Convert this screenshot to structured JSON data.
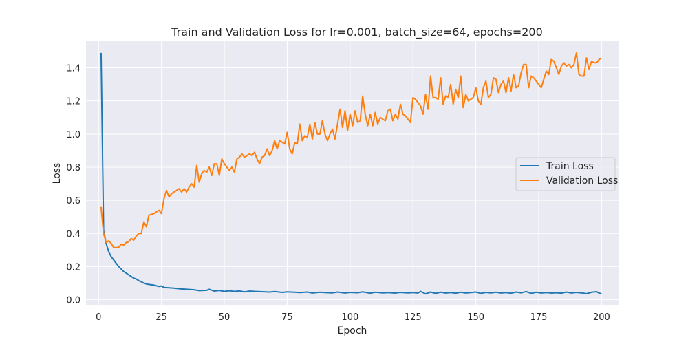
{
  "chart_data": {
    "type": "line",
    "title": "Train and Validation Loss for lr=0.001, batch_size=64, epochs=200",
    "xlabel": "Epoch",
    "ylabel": "Loss",
    "xlim": [
      -5,
      207
    ],
    "ylim": [
      -0.035,
      1.56
    ],
    "xticks": [
      0,
      25,
      50,
      75,
      100,
      125,
      150,
      175,
      200
    ],
    "yticks": [
      0.0,
      0.2,
      0.4,
      0.6,
      0.8,
      1.0,
      1.2,
      1.4
    ],
    "grid": true,
    "legend_position": "center-right",
    "series": [
      {
        "name": "Train Loss",
        "color": "#1f77b4",
        "points": [
          [
            1,
            1.49
          ],
          [
            2,
            0.42
          ],
          [
            3,
            0.34
          ],
          [
            4,
            0.29
          ],
          [
            5,
            0.26
          ],
          [
            6,
            0.24
          ],
          [
            7,
            0.22
          ],
          [
            8,
            0.2
          ],
          [
            9,
            0.185
          ],
          [
            10,
            0.17
          ],
          [
            11,
            0.16
          ],
          [
            12,
            0.15
          ],
          [
            13,
            0.14
          ],
          [
            14,
            0.13
          ],
          [
            15,
            0.125
          ],
          [
            16,
            0.115
          ],
          [
            17,
            0.108
          ],
          [
            18,
            0.1
          ],
          [
            19,
            0.095
          ],
          [
            20,
            0.092
          ],
          [
            22,
            0.088
          ],
          [
            24,
            0.08
          ],
          [
            25,
            0.083
          ],
          [
            26,
            0.074
          ],
          [
            28,
            0.072
          ],
          [
            30,
            0.07
          ],
          [
            32,
            0.066
          ],
          [
            35,
            0.063
          ],
          [
            38,
            0.06
          ],
          [
            40,
            0.055
          ],
          [
            43,
            0.057
          ],
          [
            44,
            0.063
          ],
          [
            46,
            0.052
          ],
          [
            48,
            0.056
          ],
          [
            50,
            0.05
          ],
          [
            52,
            0.054
          ],
          [
            54,
            0.05
          ],
          [
            56,
            0.053
          ],
          [
            58,
            0.047
          ],
          [
            60,
            0.052
          ],
          [
            62,
            0.05
          ],
          [
            65,
            0.048
          ],
          [
            68,
            0.046
          ],
          [
            70,
            0.049
          ],
          [
            73,
            0.044
          ],
          [
            75,
            0.047
          ],
          [
            78,
            0.045
          ],
          [
            80,
            0.043
          ],
          [
            83,
            0.046
          ],
          [
            85,
            0.04
          ],
          [
            88,
            0.045
          ],
          [
            90,
            0.043
          ],
          [
            93,
            0.041
          ],
          [
            95,
            0.046
          ],
          [
            98,
            0.04
          ],
          [
            100,
            0.044
          ],
          [
            103,
            0.042
          ],
          [
            105,
            0.047
          ],
          [
            108,
            0.039
          ],
          [
            110,
            0.045
          ],
          [
            113,
            0.041
          ],
          [
            115,
            0.043
          ],
          [
            118,
            0.04
          ],
          [
            120,
            0.044
          ],
          [
            123,
            0.041
          ],
          [
            125,
            0.043
          ],
          [
            127,
            0.04
          ],
          [
            128,
            0.05
          ],
          [
            130,
            0.035
          ],
          [
            132,
            0.046
          ],
          [
            134,
            0.038
          ],
          [
            136,
            0.045
          ],
          [
            138,
            0.04
          ],
          [
            140,
            0.043
          ],
          [
            142,
            0.039
          ],
          [
            144,
            0.045
          ],
          [
            146,
            0.04
          ],
          [
            148,
            0.043
          ],
          [
            150,
            0.046
          ],
          [
            152,
            0.038
          ],
          [
            154,
            0.044
          ],
          [
            156,
            0.041
          ],
          [
            158,
            0.045
          ],
          [
            160,
            0.04
          ],
          [
            162,
            0.043
          ],
          [
            164,
            0.039
          ],
          [
            166,
            0.046
          ],
          [
            168,
            0.041
          ],
          [
            170,
            0.049
          ],
          [
            172,
            0.038
          ],
          [
            174,
            0.045
          ],
          [
            176,
            0.04
          ],
          [
            178,
            0.043
          ],
          [
            180,
            0.04
          ],
          [
            182,
            0.042
          ],
          [
            184,
            0.039
          ],
          [
            186,
            0.046
          ],
          [
            188,
            0.04
          ],
          [
            190,
            0.044
          ],
          [
            192,
            0.041
          ],
          [
            194,
            0.036
          ],
          [
            196,
            0.045
          ],
          [
            198,
            0.048
          ],
          [
            199,
            0.04
          ],
          [
            200,
            0.035
          ]
        ]
      },
      {
        "name": "Validation Loss",
        "color": "#ff7f0e",
        "points": [
          [
            1,
            0.56
          ],
          [
            2,
            0.4
          ],
          [
            3,
            0.345
          ],
          [
            4,
            0.355
          ],
          [
            5,
            0.34
          ],
          [
            6,
            0.315
          ],
          [
            7,
            0.315
          ],
          [
            8,
            0.316
          ],
          [
            9,
            0.335
          ],
          [
            10,
            0.33
          ],
          [
            11,
            0.345
          ],
          [
            12,
            0.35
          ],
          [
            13,
            0.37
          ],
          [
            14,
            0.36
          ],
          [
            15,
            0.385
          ],
          [
            16,
            0.4
          ],
          [
            17,
            0.4
          ],
          [
            18,
            0.47
          ],
          [
            19,
            0.44
          ],
          [
            20,
            0.51
          ],
          [
            22,
            0.52
          ],
          [
            24,
            0.54
          ],
          [
            25,
            0.52
          ],
          [
            26,
            0.61
          ],
          [
            27,
            0.66
          ],
          [
            28,
            0.62
          ],
          [
            29,
            0.64
          ],
          [
            31,
            0.66
          ],
          [
            32,
            0.67
          ],
          [
            33,
            0.65
          ],
          [
            34,
            0.67
          ],
          [
            35,
            0.65
          ],
          [
            36,
            0.68
          ],
          [
            37,
            0.7
          ],
          [
            38,
            0.68
          ],
          [
            39,
            0.81
          ],
          [
            40,
            0.71
          ],
          [
            41,
            0.76
          ],
          [
            42,
            0.78
          ],
          [
            43,
            0.77
          ],
          [
            44,
            0.8
          ],
          [
            45,
            0.75
          ],
          [
            46,
            0.82
          ],
          [
            47,
            0.82
          ],
          [
            48,
            0.75
          ],
          [
            49,
            0.85
          ],
          [
            50,
            0.82
          ],
          [
            51,
            0.8
          ],
          [
            52,
            0.78
          ],
          [
            53,
            0.8
          ],
          [
            54,
            0.77
          ],
          [
            55,
            0.85
          ],
          [
            56,
            0.86
          ],
          [
            57,
            0.88
          ],
          [
            58,
            0.86
          ],
          [
            59,
            0.87
          ],
          [
            60,
            0.88
          ],
          [
            61,
            0.87
          ],
          [
            62,
            0.89
          ],
          [
            63,
            0.85
          ],
          [
            64,
            0.82
          ],
          [
            65,
            0.86
          ],
          [
            66,
            0.87
          ],
          [
            67,
            0.91
          ],
          [
            68,
            0.87
          ],
          [
            69,
            0.9
          ],
          [
            70,
            0.96
          ],
          [
            71,
            0.91
          ],
          [
            72,
            0.96
          ],
          [
            73,
            0.95
          ],
          [
            74,
            0.94
          ],
          [
            75,
            1.01
          ],
          [
            76,
            0.91
          ],
          [
            77,
            0.88
          ],
          [
            78,
            0.95
          ],
          [
            79,
            0.94
          ],
          [
            80,
            1.06
          ],
          [
            81,
            0.96
          ],
          [
            82,
            0.99
          ],
          [
            83,
            0.98
          ],
          [
            84,
            1.06
          ],
          [
            85,
            0.97
          ],
          [
            86,
            1.07
          ],
          [
            87,
            1.0
          ],
          [
            88,
            1.0
          ],
          [
            89,
            1.08
          ],
          [
            90,
            1.0
          ],
          [
            91,
            0.96
          ],
          [
            92,
            1.0
          ],
          [
            93,
            1.03
          ],
          [
            94,
            0.97
          ],
          [
            95,
            1.06
          ],
          [
            96,
            1.15
          ],
          [
            97,
            1.04
          ],
          [
            98,
            1.14
          ],
          [
            99,
            1.02
          ],
          [
            100,
            1.12
          ],
          [
            101,
            1.05
          ],
          [
            102,
            1.14
          ],
          [
            103,
            1.07
          ],
          [
            104,
            1.08
          ],
          [
            105,
            1.23
          ],
          [
            106,
            1.12
          ],
          [
            107,
            1.05
          ],
          [
            108,
            1.12
          ],
          [
            109,
            1.05
          ],
          [
            110,
            1.13
          ],
          [
            111,
            1.06
          ],
          [
            112,
            1.1
          ],
          [
            113,
            1.09
          ],
          [
            114,
            1.08
          ],
          [
            115,
            1.14
          ],
          [
            116,
            1.15
          ],
          [
            117,
            1.08
          ],
          [
            118,
            1.12
          ],
          [
            119,
            1.09
          ],
          [
            120,
            1.18
          ],
          [
            121,
            1.12
          ],
          [
            122,
            1.11
          ],
          [
            123,
            1.09
          ],
          [
            124,
            1.07
          ],
          [
            125,
            1.22
          ],
          [
            126,
            1.21
          ],
          [
            127,
            1.19
          ],
          [
            128,
            1.17
          ],
          [
            129,
            1.12
          ],
          [
            130,
            1.24
          ],
          [
            131,
            1.15
          ],
          [
            132,
            1.35
          ],
          [
            133,
            1.22
          ],
          [
            134,
            1.22
          ],
          [
            135,
            1.21
          ],
          [
            136,
            1.34
          ],
          [
            137,
            1.18
          ],
          [
            138,
            1.23
          ],
          [
            139,
            1.22
          ],
          [
            140,
            1.3
          ],
          [
            141,
            1.18
          ],
          [
            142,
            1.27
          ],
          [
            143,
            1.22
          ],
          [
            144,
            1.35
          ],
          [
            145,
            1.16
          ],
          [
            146,
            1.24
          ],
          [
            147,
            1.2
          ],
          [
            148,
            1.21
          ],
          [
            149,
            1.22
          ],
          [
            150,
            1.28
          ],
          [
            151,
            1.2
          ],
          [
            152,
            1.18
          ],
          [
            153,
            1.28
          ],
          [
            154,
            1.32
          ],
          [
            155,
            1.22
          ],
          [
            156,
            1.24
          ],
          [
            157,
            1.34
          ],
          [
            158,
            1.33
          ],
          [
            159,
            1.25
          ],
          [
            160,
            1.3
          ],
          [
            161,
            1.32
          ],
          [
            162,
            1.25
          ],
          [
            163,
            1.34
          ],
          [
            164,
            1.26
          ],
          [
            165,
            1.36
          ],
          [
            166,
            1.28
          ],
          [
            167,
            1.29
          ],
          [
            168,
            1.37
          ],
          [
            169,
            1.42
          ],
          [
            170,
            1.42
          ],
          [
            171,
            1.28
          ],
          [
            172,
            1.35
          ],
          [
            173,
            1.34
          ],
          [
            174,
            1.32
          ],
          [
            175,
            1.3
          ],
          [
            176,
            1.28
          ],
          [
            177,
            1.33
          ],
          [
            178,
            1.38
          ],
          [
            179,
            1.36
          ],
          [
            180,
            1.45
          ],
          [
            181,
            1.44
          ],
          [
            182,
            1.4
          ],
          [
            183,
            1.36
          ],
          [
            184,
            1.41
          ],
          [
            185,
            1.43
          ],
          [
            186,
            1.41
          ],
          [
            187,
            1.42
          ],
          [
            188,
            1.4
          ],
          [
            189,
            1.42
          ],
          [
            190,
            1.49
          ],
          [
            191,
            1.36
          ],
          [
            192,
            1.35
          ],
          [
            193,
            1.35
          ],
          [
            194,
            1.46
          ],
          [
            195,
            1.39
          ],
          [
            196,
            1.44
          ],
          [
            197,
            1.43
          ],
          [
            198,
            1.43
          ],
          [
            199,
            1.45
          ],
          [
            200,
            1.46
          ]
        ]
      }
    ]
  }
}
